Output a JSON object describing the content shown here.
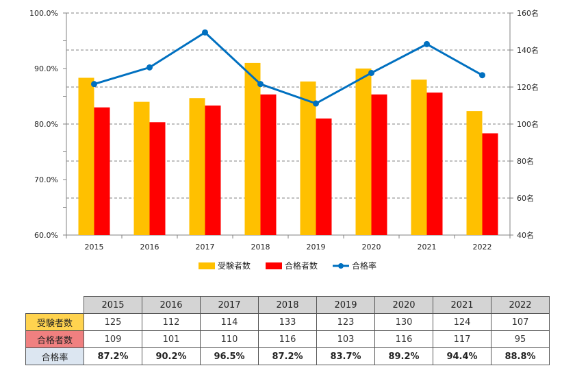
{
  "chart_data": {
    "type": "bar+line",
    "categories": [
      "2015",
      "2016",
      "2017",
      "2018",
      "2019",
      "2020",
      "2021",
      "2022"
    ],
    "series": [
      {
        "name": "受験者数",
        "type": "bar",
        "axis": "right",
        "color": "#ffc000",
        "values": [
          125,
          112,
          114,
          133,
          123,
          130,
          124,
          107
        ]
      },
      {
        "name": "合格者数",
        "type": "bar",
        "axis": "right",
        "color": "#ff0000",
        "values": [
          109,
          101,
          110,
          116,
          103,
          116,
          117,
          95
        ]
      },
      {
        "name": "合格率",
        "type": "line",
        "axis": "left",
        "color": "#0070c0",
        "values": [
          87.2,
          90.2,
          96.5,
          87.2,
          83.7,
          89.2,
          94.4,
          88.8
        ]
      }
    ],
    "left_axis": {
      "min": 60,
      "max": 100,
      "ticks": [
        "60.0%",
        "70.0%",
        "80.0%",
        "90.0%",
        "100.0%"
      ]
    },
    "right_axis": {
      "min": 40,
      "max": 160,
      "ticks": [
        "40名",
        "60名",
        "80名",
        "100名",
        "120名",
        "140名",
        "160名"
      ]
    },
    "grid": true,
    "legend_position": "bottom"
  },
  "table": {
    "years": [
      "2015",
      "2016",
      "2017",
      "2018",
      "2019",
      "2020",
      "2021",
      "2022"
    ],
    "rows": [
      {
        "label": "受験者数",
        "values": [
          "125",
          "112",
          "114",
          "133",
          "123",
          "130",
          "124",
          "107"
        ]
      },
      {
        "label": "合格者数",
        "values": [
          "109",
          "101",
          "110",
          "116",
          "103",
          "116",
          "117",
          "95"
        ]
      },
      {
        "label": "合格率",
        "values": [
          "87.2%",
          "90.2%",
          "96.5%",
          "87.2%",
          "83.7%",
          "89.2%",
          "94.4%",
          "88.8%"
        ]
      }
    ]
  }
}
